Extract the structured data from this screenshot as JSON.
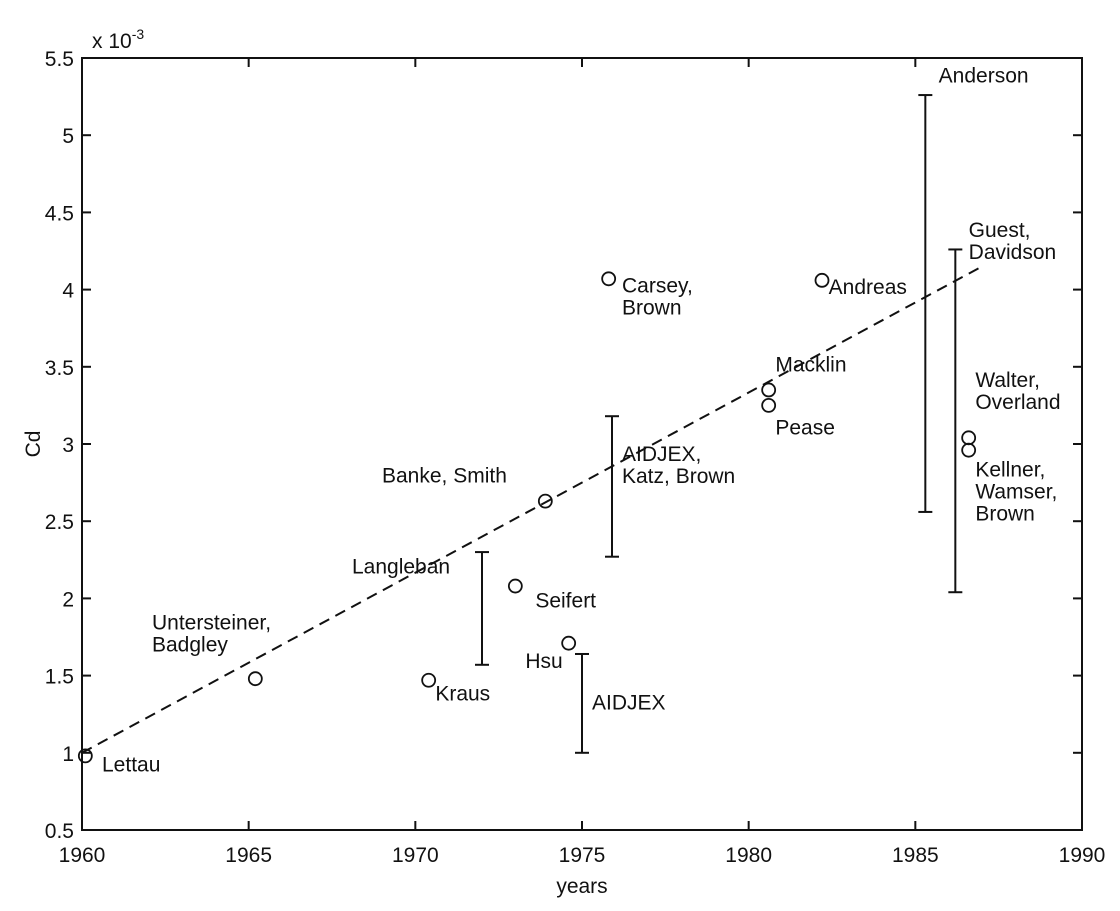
{
  "chart_data": {
    "type": "scatter",
    "title": "",
    "xlabel": "years",
    "ylabel": "Cd",
    "y_multiplier": "x 10",
    "y_multiplier_exp": "-3",
    "xlim": [
      1960,
      1990
    ],
    "ylim": [
      0.5,
      5.5
    ],
    "x_ticks": [
      1960,
      1965,
      1970,
      1975,
      1980,
      1985,
      1990
    ],
    "x_tick_labels": [
      "1960",
      "1965",
      "1970",
      "1975",
      "1980",
      "1985",
      "1990"
    ],
    "y_ticks": [
      0.5,
      1,
      1.5,
      2,
      2.5,
      3,
      3.5,
      4,
      4.5,
      5,
      5.5
    ],
    "y_tick_labels": [
      "0.5",
      "1",
      "1.5",
      "2",
      "2.5",
      "3",
      "3.5",
      "4",
      "4.5",
      "5",
      "5.5"
    ],
    "grid": false,
    "trend_line": {
      "style": "dashed",
      "points": [
        [
          1960,
          1.0
        ],
        [
          1987,
          4.15
        ]
      ]
    },
    "points": [
      {
        "x": 1960.1,
        "y": 0.98
      },
      {
        "x": 1965.2,
        "y": 1.48
      },
      {
        "x": 1970.4,
        "y": 1.47
      },
      {
        "x": 1973.0,
        "y": 2.08
      },
      {
        "x": 1973.9,
        "y": 2.63
      },
      {
        "x": 1974.6,
        "y": 1.71
      },
      {
        "x": 1975.8,
        "y": 4.07
      },
      {
        "x": 1980.6,
        "y": 3.35
      },
      {
        "x": 1980.6,
        "y": 3.25
      },
      {
        "x": 1982.2,
        "y": 4.06
      },
      {
        "x": 1986.6,
        "y": 3.04
      },
      {
        "x": 1986.6,
        "y": 2.96
      }
    ],
    "ranges": [
      {
        "x": 1972.0,
        "low": 1.57,
        "high": 2.3
      },
      {
        "x": 1975.0,
        "low": 1.0,
        "high": 1.64
      },
      {
        "x": 1975.9,
        "low": 2.27,
        "high": 3.18
      },
      {
        "x": 1985.3,
        "low": 2.56,
        "high": 5.26
      },
      {
        "x": 1986.2,
        "low": 2.04,
        "high": 4.26
      }
    ],
    "annotations": [
      {
        "lines": [
          "Lettau"
        ],
        "x": 1960.6,
        "y": 0.88
      },
      {
        "lines": [
          "Untersteiner,",
          "Badgley"
        ],
        "x": 1962.1,
        "y": 1.8
      },
      {
        "lines": [
          "Kraus"
        ],
        "x": 1970.6,
        "y": 1.34
      },
      {
        "lines": [
          "Langleban"
        ],
        "x": 1968.1,
        "y": 2.16
      },
      {
        "lines": [
          "Seifert"
        ],
        "x": 1973.6,
        "y": 1.94
      },
      {
        "lines": [
          "Hsu"
        ],
        "x": 1973.3,
        "y": 1.55
      },
      {
        "lines": [
          "AIDJEX"
        ],
        "x": 1975.3,
        "y": 1.28
      },
      {
        "lines": [
          "Banke, Smith"
        ],
        "x": 1969.0,
        "y": 2.75
      },
      {
        "lines": [
          "AIDJEX,",
          "Katz, Brown"
        ],
        "x": 1976.2,
        "y": 2.89
      },
      {
        "lines": [
          "Carsey,",
          "Brown"
        ],
        "x": 1976.2,
        "y": 3.98
      },
      {
        "lines": [
          "Macklin"
        ],
        "x": 1980.8,
        "y": 3.47
      },
      {
        "lines": [
          "Pease"
        ],
        "x": 1980.8,
        "y": 3.06
      },
      {
        "lines": [
          "Andreas"
        ],
        "x": 1982.4,
        "y": 3.97
      },
      {
        "lines": [
          "Anderson"
        ],
        "x": 1985.7,
        "y": 5.34
      },
      {
        "lines": [
          "Guest,",
          "Davidson"
        ],
        "x": 1986.6,
        "y": 4.34
      },
      {
        "lines": [
          "Walter,",
          "Overland"
        ],
        "x": 1986.8,
        "y": 3.37
      },
      {
        "lines": [
          "Kellner,",
          "Wamser,",
          "Brown"
        ],
        "x": 1986.8,
        "y": 2.79
      }
    ]
  }
}
